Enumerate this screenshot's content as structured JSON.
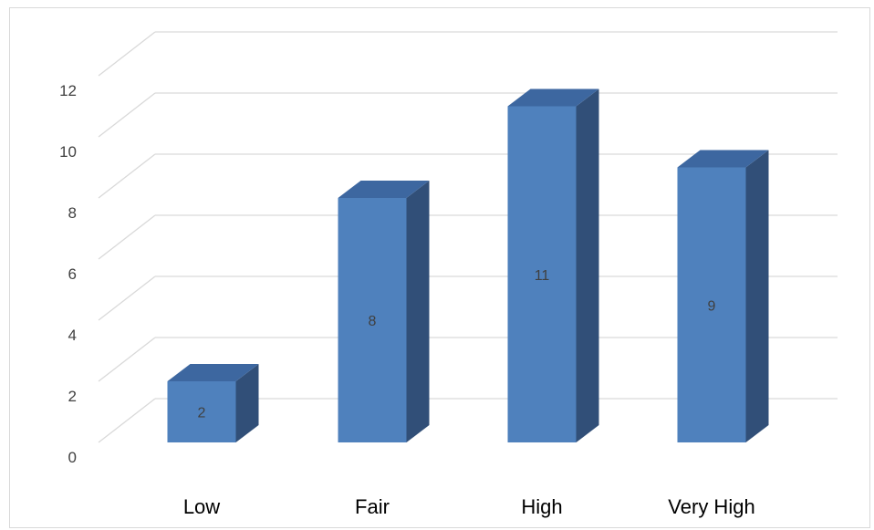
{
  "chart_data": {
    "type": "bar",
    "style": "3d-column",
    "categories": [
      "Low",
      "Fair",
      "High",
      "Very High"
    ],
    "values": [
      2,
      8,
      11,
      9
    ],
    "data_labels": [
      "2",
      "8",
      "11",
      "9"
    ],
    "y_ticks": [
      "0",
      "2",
      "4",
      "6",
      "8",
      "10",
      "12"
    ],
    "ylim": [
      0,
      12
    ],
    "grid": true,
    "legend": "none",
    "colors": {
      "front": "#4f81bd",
      "top": "#3d67a0",
      "side": "#314f78",
      "grid": "#d9d9d9"
    }
  }
}
